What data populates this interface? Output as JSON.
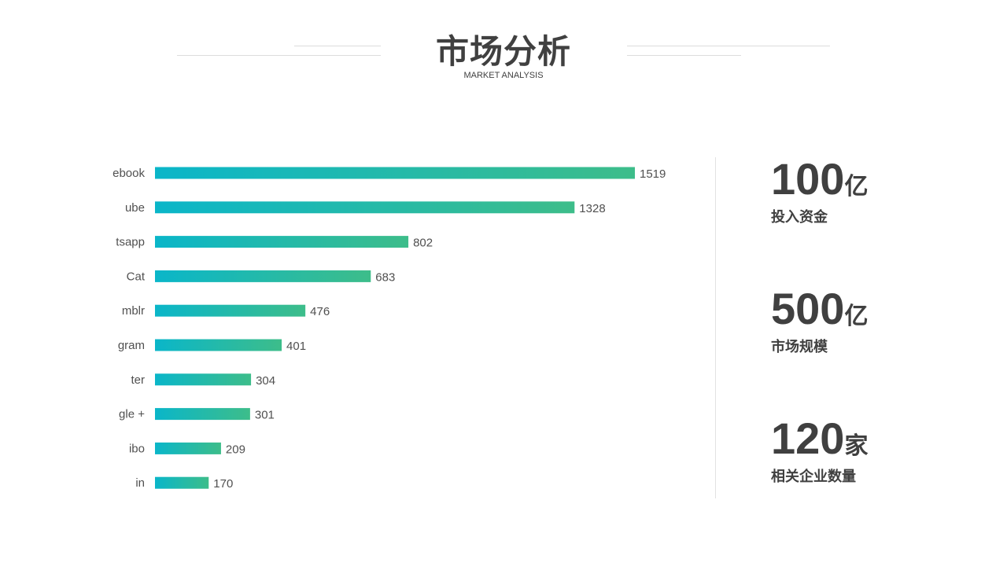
{
  "header": {
    "title": "市场分析",
    "subtitle": "MARKET ANALYSIS"
  },
  "chart_data": {
    "type": "bar",
    "orientation": "horizontal",
    "categories": [
      "ebook",
      "ube",
      "tsapp",
      "Cat",
      "mblr",
      "gram",
      "ter",
      "gle +",
      "ibo",
      "in"
    ],
    "values": [
      1519,
      1328,
      802,
      683,
      476,
      401,
      304,
      301,
      209,
      170
    ],
    "title": "",
    "xlabel": "",
    "ylabel": "",
    "xlim": [
      0,
      1519
    ],
    "grid": false,
    "legend": "none",
    "colors": {
      "gradient_start": "#0ab6c9",
      "gradient_end": "#3dbd8a"
    }
  },
  "stats": [
    {
      "value": "100",
      "unit": "亿",
      "label": "投入资金"
    },
    {
      "value": "500",
      "unit": "亿",
      "label": "市场规模"
    },
    {
      "value": "120",
      "unit": "家",
      "label": "相关企业数量"
    }
  ]
}
